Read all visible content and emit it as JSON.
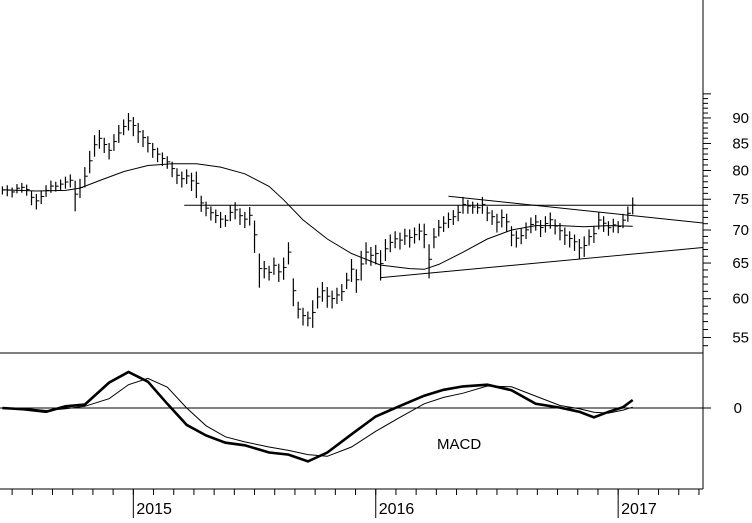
{
  "chart_data": [
    {
      "type": "ohlc",
      "panel": "price",
      "y_scale": "log",
      "ylim": [
        51,
        96
      ],
      "y_ticks": [
        55,
        60,
        65,
        70,
        75,
        80,
        85,
        90
      ],
      "x_range": [
        2014.45,
        2017.35
      ],
      "x_tick_labels": [
        "2015",
        "2016",
        "2017"
      ],
      "x_tick_values": [
        2015.0,
        2016.0,
        2017.0
      ],
      "bars": [
        [
          2014.46,
          77.2,
          75.8
        ],
        [
          2014.48,
          77.4,
          75.5
        ],
        [
          2014.5,
          77.0,
          75.3
        ],
        [
          2014.52,
          77.6,
          76.0
        ],
        [
          2014.54,
          77.8,
          76.1
        ],
        [
          2014.56,
          77.5,
          75.6
        ],
        [
          2014.58,
          76.4,
          74.0
        ],
        [
          2014.6,
          75.9,
          73.3
        ],
        [
          2014.62,
          76.5,
          74.2
        ],
        [
          2014.64,
          77.4,
          75.4
        ],
        [
          2014.66,
          78.2,
          76.1
        ],
        [
          2014.68,
          78.0,
          76.3
        ],
        [
          2014.7,
          78.4,
          76.6
        ],
        [
          2014.72,
          78.9,
          76.8
        ],
        [
          2014.74,
          79.3,
          77.0
        ],
        [
          2014.76,
          78.2,
          73.0
        ],
        [
          2014.78,
          78.5,
          75.2
        ],
        [
          2014.8,
          80.6,
          77.0
        ],
        [
          2014.82,
          83.6,
          79.5
        ],
        [
          2014.84,
          86.6,
          82.5
        ],
        [
          2014.86,
          87.6,
          84.0
        ],
        [
          2014.88,
          86.1,
          83.2
        ],
        [
          2014.9,
          85.1,
          82.0
        ],
        [
          2014.92,
          86.8,
          83.6
        ],
        [
          2014.94,
          88.6,
          85.1
        ],
        [
          2014.96,
          89.7,
          86.6
        ],
        [
          2014.98,
          91.0,
          87.5
        ],
        [
          2015.0,
          90.2,
          86.4
        ],
        [
          2015.02,
          89.0,
          85.1
        ],
        [
          2015.04,
          87.6,
          84.3
        ],
        [
          2015.06,
          86.4,
          83.3
        ],
        [
          2015.08,
          85.1,
          82.3
        ],
        [
          2015.1,
          84.2,
          81.5
        ],
        [
          2015.12,
          83.3,
          80.8
        ],
        [
          2015.14,
          82.6,
          80.3
        ],
        [
          2015.16,
          81.6,
          78.8
        ],
        [
          2015.18,
          80.4,
          77.6
        ],
        [
          2015.2,
          79.8,
          77.0
        ],
        [
          2015.22,
          80.2,
          77.6
        ],
        [
          2015.24,
          79.6,
          76.4
        ],
        [
          2015.26,
          79.8,
          75.2
        ],
        [
          2015.28,
          75.6,
          72.9
        ],
        [
          2015.3,
          74.6,
          72.2
        ],
        [
          2015.32,
          73.8,
          71.5
        ],
        [
          2015.34,
          73.3,
          71.1
        ],
        [
          2015.36,
          72.9,
          70.3
        ],
        [
          2015.38,
          72.4,
          70.5
        ],
        [
          2015.4,
          74.0,
          71.4
        ],
        [
          2015.42,
          74.5,
          71.7
        ],
        [
          2015.44,
          73.5,
          70.8
        ],
        [
          2015.46,
          72.9,
          70.3
        ],
        [
          2015.48,
          73.7,
          70.7
        ],
        [
          2015.5,
          71.5,
          66.5
        ],
        [
          2015.52,
          66.4,
          61.5
        ],
        [
          2015.54,
          65.3,
          62.8
        ],
        [
          2015.56,
          64.6,
          62.5
        ],
        [
          2015.58,
          65.8,
          63.3
        ],
        [
          2015.6,
          64.9,
          62.3
        ],
        [
          2015.62,
          65.8,
          62.6
        ],
        [
          2015.64,
          68.1,
          64.8
        ],
        [
          2015.66,
          62.8,
          59.0
        ],
        [
          2015.68,
          59.6,
          57.4
        ],
        [
          2015.7,
          58.8,
          56.5
        ],
        [
          2015.72,
          58.3,
          56.4
        ],
        [
          2015.74,
          59.8,
          56.2
        ],
        [
          2015.76,
          61.5,
          58.7
        ],
        [
          2015.78,
          62.3,
          59.6
        ],
        [
          2015.8,
          61.6,
          58.8
        ],
        [
          2015.82,
          61.1,
          58.7
        ],
        [
          2015.84,
          61.5,
          59.3
        ],
        [
          2015.86,
          62.0,
          59.7
        ],
        [
          2015.88,
          63.6,
          61.3
        ],
        [
          2015.9,
          65.6,
          62.3
        ],
        [
          2015.92,
          64.1,
          60.8
        ],
        [
          2015.94,
          66.8,
          62.5
        ],
        [
          2015.96,
          68.1,
          64.8
        ],
        [
          2015.98,
          67.4,
          64.6
        ],
        [
          2016.0,
          67.7,
          64.8
        ],
        [
          2016.02,
          66.9,
          62.5
        ],
        [
          2016.04,
          68.6,
          65.3
        ],
        [
          2016.06,
          69.3,
          66.6
        ],
        [
          2016.08,
          69.8,
          67.2
        ],
        [
          2016.1,
          69.6,
          67.0
        ],
        [
          2016.12,
          70.2,
          67.7
        ],
        [
          2016.14,
          70.1,
          67.3
        ],
        [
          2016.16,
          70.4,
          67.9
        ],
        [
          2016.18,
          71.0,
          68.4
        ],
        [
          2016.2,
          71.0,
          67.2
        ],
        [
          2016.22,
          67.8,
          62.8
        ],
        [
          2016.24,
          70.3,
          67.2
        ],
        [
          2016.26,
          71.6,
          69.0
        ],
        [
          2016.28,
          72.2,
          69.7
        ],
        [
          2016.3,
          72.8,
          70.3
        ],
        [
          2016.32,
          73.2,
          70.8
        ],
        [
          2016.34,
          74.0,
          71.4
        ],
        [
          2016.36,
          75.4,
          72.6
        ],
        [
          2016.38,
          74.9,
          72.6
        ],
        [
          2016.4,
          74.6,
          72.6
        ],
        [
          2016.42,
          74.4,
          72.6
        ],
        [
          2016.44,
          75.4,
          72.6
        ],
        [
          2016.46,
          73.8,
          71.4
        ],
        [
          2016.48,
          73.2,
          70.8
        ],
        [
          2016.5,
          72.6,
          69.6
        ],
        [
          2016.52,
          73.3,
          70.4
        ],
        [
          2016.54,
          72.6,
          69.7
        ],
        [
          2016.56,
          70.6,
          67.5
        ],
        [
          2016.58,
          69.9,
          67.3
        ],
        [
          2016.6,
          70.2,
          67.8
        ],
        [
          2016.62,
          71.2,
          68.6
        ],
        [
          2016.64,
          72.0,
          69.5
        ],
        [
          2016.66,
          72.4,
          69.9
        ],
        [
          2016.68,
          71.6,
          68.9
        ],
        [
          2016.7,
          72.2,
          69.6
        ],
        [
          2016.72,
          72.8,
          70.2
        ],
        [
          2016.74,
          71.7,
          69.3
        ],
        [
          2016.76,
          71.1,
          68.4
        ],
        [
          2016.78,
          70.4,
          67.7
        ],
        [
          2016.8,
          69.8,
          67.3
        ],
        [
          2016.82,
          69.3,
          66.8
        ],
        [
          2016.84,
          68.6,
          65.6
        ],
        [
          2016.86,
          69.0,
          65.9
        ],
        [
          2016.88,
          70.1,
          67.6
        ],
        [
          2016.9,
          70.6,
          68.0
        ],
        [
          2016.92,
          72.8,
          70.1
        ],
        [
          2016.94,
          72.2,
          69.7
        ],
        [
          2016.96,
          71.4,
          69.1
        ],
        [
          2016.98,
          71.8,
          69.6
        ],
        [
          2017.0,
          71.4,
          69.5
        ],
        [
          2017.02,
          72.6,
          70.3
        ],
        [
          2017.04,
          73.8,
          71.3
        ],
        [
          2017.06,
          75.3,
          72.5
        ]
      ],
      "overlays": [
        {
          "kind": "moving-average",
          "points": [
            [
              2014.46,
              76.6
            ],
            [
              2014.6,
              76.4
            ],
            [
              2014.72,
              76.5
            ],
            [
              2014.78,
              76.9
            ],
            [
              2014.86,
              78.2
            ],
            [
              2014.96,
              79.8
            ],
            [
              2015.06,
              80.9
            ],
            [
              2015.16,
              81.2
            ],
            [
              2015.26,
              81.2
            ],
            [
              2015.36,
              80.6
            ],
            [
              2015.46,
              79.4
            ],
            [
              2015.56,
              77.2
            ],
            [
              2015.62,
              74.9
            ],
            [
              2015.7,
              71.6
            ],
            [
              2015.8,
              68.6
            ],
            [
              2015.9,
              66.4
            ],
            [
              2016.02,
              64.7
            ],
            [
              2016.14,
              64.2
            ],
            [
              2016.2,
              64.1
            ],
            [
              2016.26,
              64.8
            ],
            [
              2016.36,
              66.6
            ],
            [
              2016.46,
              68.6
            ],
            [
              2016.56,
              70.0
            ],
            [
              2016.66,
              70.7
            ],
            [
              2016.76,
              70.7
            ],
            [
              2016.86,
              70.5
            ],
            [
              2016.96,
              70.7
            ],
            [
              2017.06,
              70.6
            ]
          ]
        },
        {
          "kind": "horizontal-line",
          "from": [
            2015.21,
            74.0
          ],
          "to": [
            2017.35,
            74.0
          ]
        },
        {
          "kind": "trendline",
          "from": [
            2016.3,
            75.5
          ],
          "to": [
            2017.35,
            71.1
          ]
        },
        {
          "kind": "trendline",
          "from": [
            2016.02,
            62.9
          ],
          "to": [
            2017.35,
            67.3
          ]
        },
        {
          "kind": "divider",
          "y": 53.9
        }
      ]
    },
    {
      "type": "line",
      "panel": "indicator",
      "label": "MACD",
      "y_range": [
        -1.4,
        1.0
      ],
      "zero_line": true,
      "series": [
        {
          "style": "thick",
          "points": [
            [
              2014.46,
              0.0
            ],
            [
              2014.55,
              -0.03
            ],
            [
              2014.64,
              -0.09
            ],
            [
              2014.72,
              0.04
            ],
            [
              2014.8,
              0.08
            ],
            [
              2014.9,
              0.6
            ],
            [
              2014.98,
              0.85
            ],
            [
              2015.06,
              0.62
            ],
            [
              2015.14,
              0.1
            ],
            [
              2015.22,
              -0.4
            ],
            [
              2015.3,
              -0.65
            ],
            [
              2015.38,
              -0.82
            ],
            [
              2015.46,
              -0.88
            ],
            [
              2015.56,
              -1.05
            ],
            [
              2015.64,
              -1.1
            ],
            [
              2015.72,
              -1.26
            ],
            [
              2015.8,
              -1.05
            ],
            [
              2015.9,
              -0.62
            ],
            [
              2016.0,
              -0.2
            ],
            [
              2016.1,
              0.05
            ],
            [
              2016.2,
              0.29
            ],
            [
              2016.28,
              0.43
            ],
            [
              2016.36,
              0.51
            ],
            [
              2016.46,
              0.55
            ],
            [
              2016.56,
              0.42
            ],
            [
              2016.66,
              0.1
            ],
            [
              2016.76,
              0.01
            ],
            [
              2016.84,
              -0.09
            ],
            [
              2016.9,
              -0.22
            ],
            [
              2016.96,
              -0.09
            ],
            [
              2017.02,
              0.02
            ],
            [
              2017.06,
              0.19
            ]
          ]
        },
        {
          "style": "thin",
          "points": [
            [
              2014.46,
              -0.02
            ],
            [
              2014.55,
              -0.01
            ],
            [
              2014.64,
              -0.06
            ],
            [
              2014.72,
              -0.02
            ],
            [
              2014.8,
              0.04
            ],
            [
              2014.9,
              0.22
            ],
            [
              2014.98,
              0.55
            ],
            [
              2015.06,
              0.7
            ],
            [
              2015.14,
              0.49
            ],
            [
              2015.22,
              0.0
            ],
            [
              2015.3,
              -0.42
            ],
            [
              2015.38,
              -0.68
            ],
            [
              2015.46,
              -0.8
            ],
            [
              2015.56,
              -0.92
            ],
            [
              2015.64,
              -1.0
            ],
            [
              2015.72,
              -1.1
            ],
            [
              2015.8,
              -1.14
            ],
            [
              2015.9,
              -0.92
            ],
            [
              2016.0,
              -0.55
            ],
            [
              2016.1,
              -0.22
            ],
            [
              2016.2,
              0.1
            ],
            [
              2016.28,
              0.25
            ],
            [
              2016.36,
              0.35
            ],
            [
              2016.46,
              0.52
            ],
            [
              2016.56,
              0.5
            ],
            [
              2016.66,
              0.28
            ],
            [
              2016.76,
              0.06
            ],
            [
              2016.84,
              -0.02
            ],
            [
              2016.9,
              -0.1
            ],
            [
              2016.96,
              -0.12
            ],
            [
              2017.02,
              -0.05
            ],
            [
              2017.06,
              0.02
            ]
          ]
        }
      ]
    }
  ]
}
